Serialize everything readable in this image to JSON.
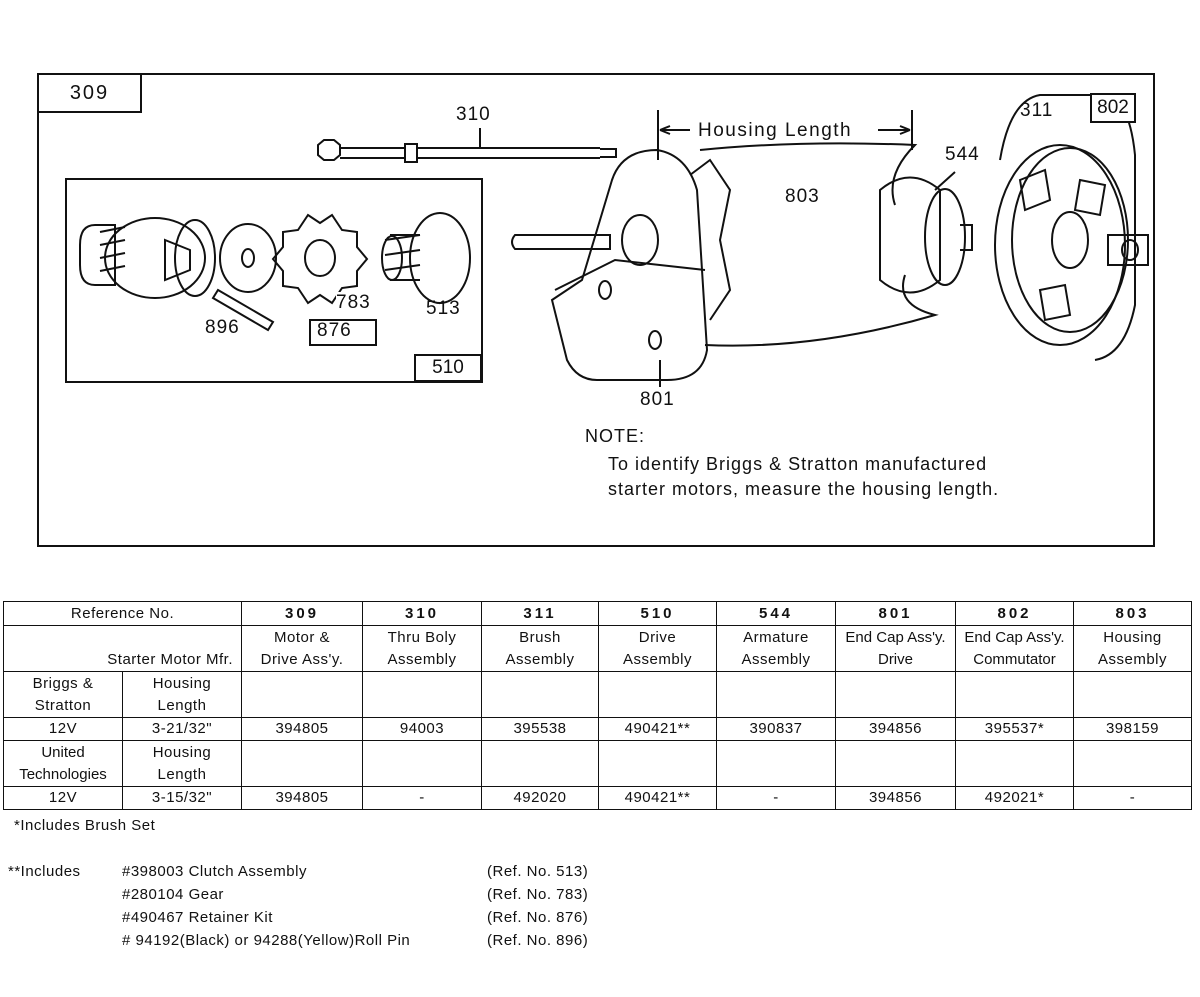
{
  "diagram": {
    "main_ref": "309",
    "callouts": {
      "thru_bolt": "310",
      "housing_length": "Housing Length",
      "armature": "544",
      "housing": "803",
      "brush": "311",
      "end_cap_commutator": "802",
      "drive_assembly": "510",
      "retainer_kit": "876",
      "roll_pin": "896",
      "gear": "783",
      "clutch": "513",
      "end_cap_drive": "801"
    },
    "note_title": "NOTE:",
    "note_line1": "To identify Briggs & Stratton manufactured",
    "note_line2": "starter motors, measure the housing length."
  },
  "table": {
    "ref_header": "Reference No.",
    "mfr_header": "Starter Motor Mfr.",
    "columns": [
      {
        "ref": "309",
        "name1": "Motor &",
        "name2": "Drive Ass'y."
      },
      {
        "ref": "310",
        "name1": "Thru Boly",
        "name2": "Assembly"
      },
      {
        "ref": "311",
        "name1": "Brush",
        "name2": "Assembly"
      },
      {
        "ref": "510",
        "name1": "Drive",
        "name2": "Assembly"
      },
      {
        "ref": "544",
        "name1": "Armature",
        "name2": "Assembly"
      },
      {
        "ref": "801",
        "name1": "End Cap Ass'y.",
        "name2": "Drive"
      },
      {
        "ref": "802",
        "name1": "End Cap Ass'y.",
        "name2": "Commutator"
      },
      {
        "ref": "803",
        "name1": "Housing",
        "name2": "Assembly"
      }
    ],
    "rows": [
      {
        "mfr1": "Briggs &",
        "mfr2": "Stratton",
        "hl1": "Housing",
        "hl2": "Length",
        "voltage": "12V",
        "length": "3-21/32\"",
        "values": [
          "394805",
          "94003",
          "395538",
          "490421**",
          "390837",
          "394856",
          "395537*",
          "398159"
        ]
      },
      {
        "mfr1": "United",
        "mfr2": "Technologies",
        "hl1": "Housing",
        "hl2": "Length",
        "voltage": "12V",
        "length": "3-15/32\"",
        "values": [
          "394805",
          "-",
          "492020",
          "490421**",
          "-",
          "394856",
          "492021*",
          "-"
        ]
      }
    ]
  },
  "footnotes": {
    "single": "*Includes Brush Set",
    "double_label": "**Includes",
    "items": [
      {
        "part": "#398003  Clutch Assembly",
        "ref": "(Ref. No. 513)"
      },
      {
        "part": "#280104  Gear",
        "ref": "(Ref. No. 783)"
      },
      {
        "part": "#490467  Retainer Kit",
        "ref": "(Ref. No. 876)"
      },
      {
        "part": "# 94192(Black)  or  94288(Yellow)Roll Pin",
        "ref": "(Ref. No. 896)"
      }
    ]
  }
}
